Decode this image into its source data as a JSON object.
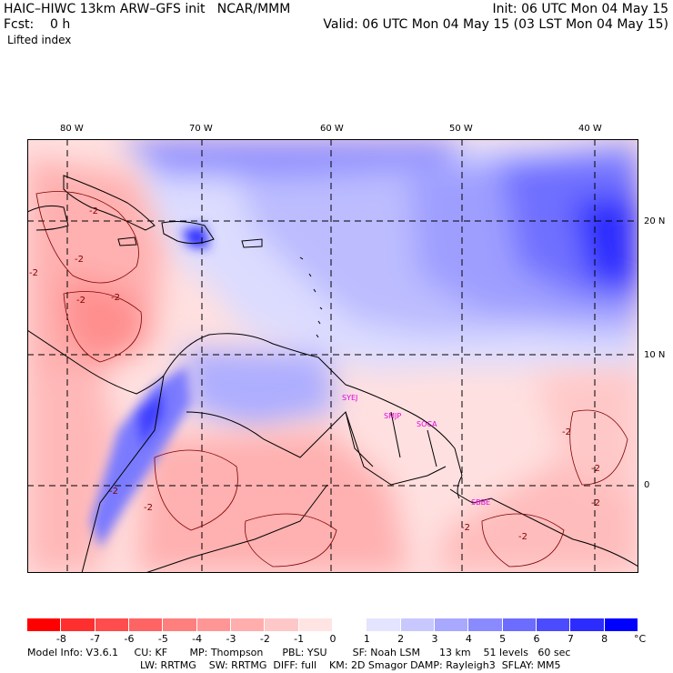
{
  "header": {
    "title_left": "HAIC–HIWC 13km ARW–GFS init   NCAR/MMM",
    "fcst": "Fcst:    0 h",
    "field": "Lifted index",
    "init": "Init: 06 UTC Mon 04 May 15",
    "valid": "Valid: 06 UTC Mon 04 May 15 (03 LST Mon 04 May 15)"
  },
  "axes": {
    "lon_labels": [
      "80 W",
      "70 W",
      "60 W",
      "50 W",
      "40 W"
    ],
    "lat_labels": [
      "20 N",
      "10 N",
      "0"
    ]
  },
  "stations": [
    "SYEJ",
    "SMJP",
    "SOCA",
    "SBBE"
  ],
  "contour_labels": [
    "-2",
    "-2",
    "-2",
    "-2",
    "-2",
    "-2",
    "-2",
    "-2",
    "-2",
    "-2",
    "-2",
    "-2"
  ],
  "colorbar": {
    "unit": "°C",
    "ticks": [
      "-8",
      "-7",
      "-6",
      "-5",
      "-4",
      "-3",
      "-2",
      "-1",
      "0",
      "1",
      "2",
      "3",
      "4",
      "5",
      "6",
      "7",
      "8"
    ],
    "colors": [
      "#ff0000",
      "#ff2f2f",
      "#ff4c4c",
      "#ff6464",
      "#ff7f7f",
      "#ff9696",
      "#ffadad",
      "#ffc8c8",
      "#ffe4e4",
      "#ffffff",
      "#e4e4ff",
      "#c8c8ff",
      "#a8a8ff",
      "#8a8aff",
      "#6c6cff",
      "#4c4cff",
      "#2c2cff",
      "#0000ff"
    ]
  },
  "footer": {
    "line1": "Model Info: V3.6.1     CU: KF       MP: Thompson      PBL: YSU        SF: Noah LSM      13 km    51 levels   60 sec",
    "line2": "LW: RRTMG    SW: RRTMG  DIFF: full    KM: 2D Smagor DAMP: Rayleigh3  SFLAY: MM5"
  }
}
